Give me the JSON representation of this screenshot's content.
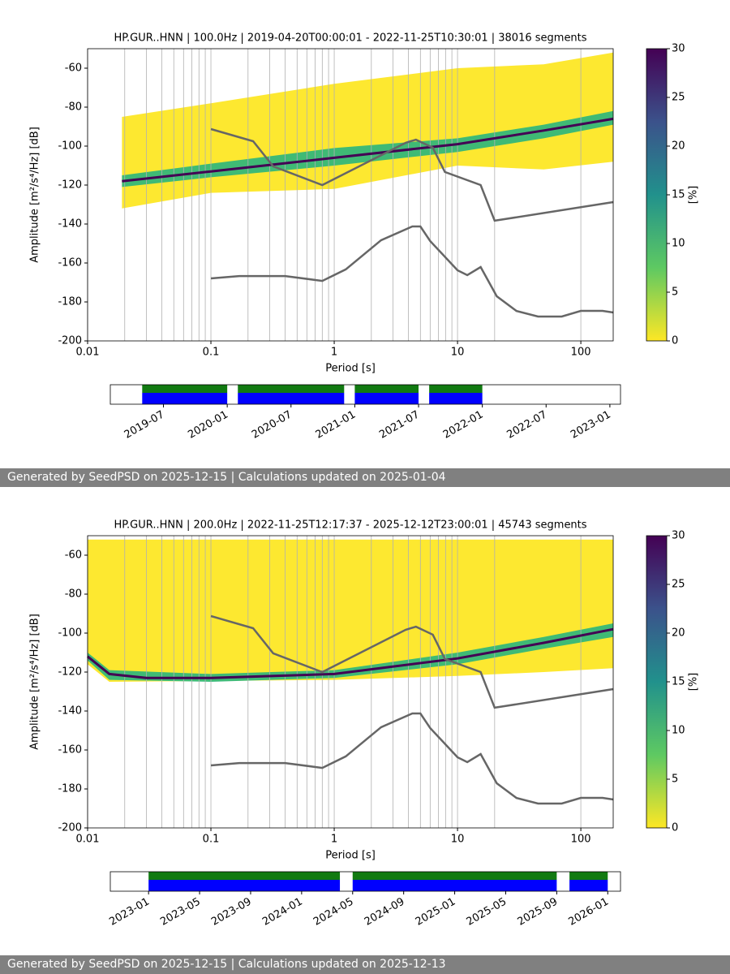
{
  "chart_data": [
    {
      "type": "ppsd",
      "title": "HP.GUR..HNN | 100.0Hz | 2019-04-20T00:00:01 - 2022-11-25T10:30:01 | 38016 segments",
      "xlabel": "Period [s]",
      "ylabel": "Amplitude [m²/s⁴/Hz] [dB]",
      "xscale": "log",
      "xlim": [
        0.01,
        183
      ],
      "ylim": [
        -200,
        -50
      ],
      "xticks": [
        0.01,
        0.1,
        1,
        10,
        100
      ],
      "yticks": [
        -200,
        -180,
        -160,
        -140,
        -120,
        -100,
        -80,
        -60
      ],
      "xminor": [
        0.02,
        0.03,
        0.04,
        0.05,
        0.06,
        0.07,
        0.08,
        0.09,
        0.2,
        0.3,
        0.4,
        0.5,
        0.6,
        0.7,
        0.8,
        0.9,
        2,
        3,
        4,
        5,
        6,
        7,
        8,
        9,
        20
      ],
      "grid": true,
      "density": [
        {
          "color": "#fde725",
          "periods": [
            0.019,
            0.1,
            1,
            10,
            50,
            183
          ],
          "lower": [
            -132,
            -124,
            -122,
            -110,
            -112,
            -108
          ],
          "upper": [
            -85,
            -78,
            -68,
            -60,
            -58,
            -52
          ]
        },
        {
          "color": "#35b779",
          "periods": [
            0.019,
            0.1,
            1,
            10,
            50,
            183
          ],
          "lower": [
            -121,
            -116,
            -110,
            -103,
            -96,
            -89
          ],
          "upper": [
            -115,
            -109,
            -101,
            -96,
            -89,
            -82
          ]
        }
      ],
      "series": [
        {
          "color": "#440154",
          "width": 3,
          "x": [
            0.019,
            0.1,
            1,
            10,
            50,
            183
          ],
          "values": [
            -118,
            -113,
            -106,
            -99,
            -92,
            -86
          ]
        },
        {
          "color": "#666666",
          "width": 2.5,
          "x": [
            0.1,
            0.22,
            0.32,
            0.8,
            3.8,
            4.6,
            6.3,
            7.9,
            15.4,
            20,
            183
          ],
          "values": [
            -91.25,
            -97.5,
            -110.4,
            -120,
            -98.3,
            -96.7,
            -100.8,
            -113.3,
            -120,
            -138.3,
            -128.75
          ]
        },
        {
          "color": "#666666",
          "width": 2.5,
          "x": [
            0.1,
            0.17,
            0.4,
            0.8,
            1.24,
            2.4,
            4.3,
            5,
            6,
            10,
            12,
            15.4,
            20.8,
            30,
            45,
            70,
            100,
            150,
            183
          ],
          "values": [
            -167.9,
            -166.7,
            -166.7,
            -169.2,
            -163.3,
            -148.3,
            -141.25,
            -141.25,
            -148.75,
            -163.75,
            -166.25,
            -162.1,
            -177.1,
            -184.6,
            -187.5,
            -187.5,
            -184.6,
            -184.6,
            -185.4
          ]
        }
      ],
      "colorbar": {
        "label": "[%]",
        "lim": [
          0,
          30
        ],
        "ticks": [
          0,
          5,
          10,
          15,
          20,
          25,
          30
        ],
        "colormap": "viridis_r"
      }
    },
    {
      "type": "timeline",
      "xlim": [
        "2019-02",
        "2023-02"
      ],
      "xticks": [
        "2019-07",
        "2020-01",
        "2020-07",
        "2021-01",
        "2021-07",
        "2022-01",
        "2022-07",
        "2023-01"
      ],
      "colors": [
        "#117a11",
        "#0000ff"
      ],
      "coverage": [
        [
          "2019-05",
          "2020-01"
        ],
        [
          "2020-02",
          "2020-12"
        ],
        [
          "2021-01",
          "2021-07"
        ],
        [
          "2021-08",
          "2022-01"
        ]
      ]
    },
    {
      "type": "ppsd",
      "title": "HP.GUR..HNN | 200.0Hz | 2022-11-25T12:17:37 - 2025-12-12T23:00:01 | 45743 segments",
      "xlabel": "Period [s]",
      "ylabel": "Amplitude [m²/s⁴/Hz] [dB]",
      "xscale": "log",
      "xlim": [
        0.01,
        183
      ],
      "ylim": [
        -200,
        -50
      ],
      "xticks": [
        0.01,
        0.1,
        1,
        10,
        100
      ],
      "yticks": [
        -200,
        -180,
        -160,
        -140,
        -120,
        -100,
        -80,
        -60
      ],
      "xminor": [
        0.02,
        0.03,
        0.04,
        0.05,
        0.06,
        0.07,
        0.08,
        0.09,
        0.2,
        0.3,
        0.4,
        0.5,
        0.6,
        0.7,
        0.8,
        0.9,
        2,
        3,
        4,
        5,
        6,
        7,
        8,
        9,
        20
      ],
      "grid": true,
      "density": [
        {
          "color": "#fde725",
          "periods": [
            0.01,
            0.015,
            1,
            10,
            50,
            183
          ],
          "lower": [
            -116,
            -125,
            -124,
            -122,
            -120,
            -118
          ],
          "upper": [
            -52,
            -52,
            -52,
            -52,
            -52,
            -52
          ]
        },
        {
          "color": "#35b779",
          "periods": [
            0.01,
            0.015,
            0.1,
            1,
            10,
            50,
            183
          ],
          "lower": [
            -114,
            -124,
            -125,
            -123,
            -116,
            -108,
            -102
          ],
          "upper": [
            -110,
            -119,
            -121,
            -119,
            -110,
            -102,
            -95
          ]
        }
      ],
      "series": [
        {
          "color": "#440154",
          "width": 3,
          "x": [
            0.01,
            0.015,
            0.03,
            0.1,
            1,
            10,
            50,
            183
          ],
          "values": [
            -112,
            -121,
            -123,
            -123,
            -121,
            -113,
            -105,
            -98
          ]
        },
        {
          "color": "#666666",
          "width": 2.5,
          "x": [
            0.1,
            0.22,
            0.32,
            0.8,
            3.8,
            4.6,
            6.3,
            7.9,
            15.4,
            20,
            183
          ],
          "values": [
            -91.25,
            -97.5,
            -110.4,
            -120,
            -98.3,
            -96.7,
            -100.8,
            -113.3,
            -120,
            -138.3,
            -128.75
          ]
        },
        {
          "color": "#666666",
          "width": 2.5,
          "x": [
            0.1,
            0.17,
            0.4,
            0.8,
            1.24,
            2.4,
            4.3,
            5,
            6,
            10,
            12,
            15.4,
            20.8,
            30,
            45,
            70,
            100,
            150,
            183
          ],
          "values": [
            -167.9,
            -166.7,
            -166.7,
            -169.2,
            -163.3,
            -148.3,
            -141.25,
            -141.25,
            -148.75,
            -163.75,
            -166.25,
            -162.1,
            -177.1,
            -184.6,
            -187.5,
            -187.5,
            -184.6,
            -184.6,
            -185.4
          ]
        }
      ],
      "colorbar": {
        "label": "[%]",
        "lim": [
          0,
          30
        ],
        "ticks": [
          0,
          5,
          10,
          15,
          20,
          25,
          30
        ],
        "colormap": "viridis_r"
      }
    },
    {
      "type": "timeline",
      "xlim": [
        "2022-10",
        "2026-02"
      ],
      "xticks": [
        "2023-01",
        "2023-05",
        "2023-09",
        "2024-01",
        "2024-05",
        "2024-09",
        "2025-01",
        "2025-05",
        "2025-09",
        "2026-01"
      ],
      "colors": [
        "#117a11",
        "#0000ff"
      ],
      "coverage": [
        [
          "2023-01",
          "2024-04"
        ],
        [
          "2024-05",
          "2025-09"
        ],
        [
          "2025-10",
          "2026-01"
        ]
      ]
    }
  ],
  "footers": [
    "Generated by SeedPSD on 2025-12-15 | Calculations updated on 2025-01-04",
    "Generated by SeedPSD on 2025-12-15 | Calculations updated on 2025-12-13"
  ]
}
